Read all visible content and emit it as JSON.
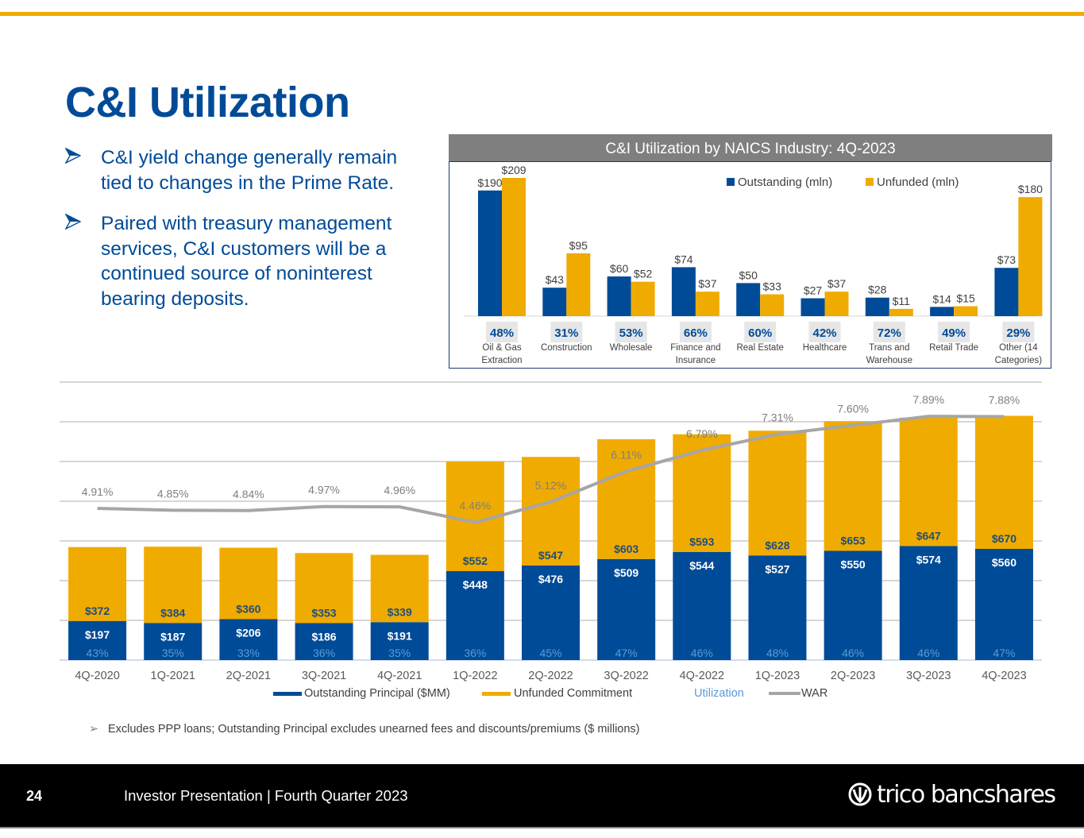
{
  "slide": {
    "title": "C&I Utilization",
    "bullets": [
      "C&I yield change generally remain tied to changes in the Prime Rate.",
      "Paired with treasury management services, C&I customers will be a continued source of noninterest bearing deposits."
    ],
    "footnote": "Excludes PPP loans; Outstanding Principal excludes unearned fees and discounts/premiums ($ millions)",
    "page_number": "24",
    "footer_text": "Investor Presentation | Fourth Quarter 2023",
    "logo_text": "trico bancshares",
    "colors": {
      "accent_gold": "#f0ab00",
      "brand_blue": "#004b98",
      "war_gray": "#a6a6a6",
      "utilization_blue": "#5b9bd5"
    }
  },
  "chart_data": [
    {
      "type": "bar",
      "title": "C&I Utilization by NAICS Industry: 4Q-2023",
      "categories": [
        "Oil & Gas Extraction",
        "Construction",
        "Wholesale",
        "Finance and Insurance",
        "Real Estate",
        "Healthcare",
        "Trans and Warehouse",
        "Retail Trade",
        "Other (14 Categories)"
      ],
      "category_lines": [
        [
          "Oil & Gas",
          "Extraction"
        ],
        [
          "Construction"
        ],
        [
          "Wholesale"
        ],
        [
          "Finance and",
          "Insurance"
        ],
        [
          "Real Estate"
        ],
        [
          "Healthcare"
        ],
        [
          "Trans and",
          "Warehouse"
        ],
        [
          "Retail Trade"
        ],
        [
          "Other (14",
          "Categories)"
        ]
      ],
      "series": [
        {
          "name": "Outstanding (mln)",
          "color": "#004b98",
          "values": [
            190,
            43,
            60,
            74,
            50,
            27,
            28,
            14,
            73
          ],
          "labels": [
            "$190",
            "$43",
            "$60",
            "$74",
            "$50",
            "$27",
            "$28",
            "$14",
            "$73"
          ]
        },
        {
          "name": "Unfunded (mln)",
          "color": "#f0ab00",
          "values": [
            209,
            95,
            52,
            37,
            33,
            37,
            11,
            15,
            180
          ],
          "labels": [
            "$209",
            "$95",
            "$52",
            "$37",
            "$33",
            "$37",
            "$11",
            "$15",
            "$180"
          ]
        }
      ],
      "utilization": [
        "48%",
        "31%",
        "53%",
        "66%",
        "60%",
        "42%",
        "72%",
        "49%",
        "29%"
      ],
      "ylim": [
        0,
        210
      ],
      "legend": "top-right",
      "grid": false
    },
    {
      "type": "bar",
      "stacked": true,
      "title": "",
      "categories": [
        "4Q-2020",
        "1Q-2021",
        "2Q-2021",
        "3Q-2021",
        "4Q-2021",
        "1Q-2022",
        "2Q-2022",
        "3Q-2022",
        "4Q-2022",
        "1Q-2023",
        "2Q-2023",
        "3Q-2023",
        "4Q-2023"
      ],
      "series": [
        {
          "name": "Outstanding Principal ($MM)",
          "color": "#004b98",
          "values": [
            197,
            187,
            206,
            186,
            191,
            448,
            476,
            509,
            544,
            527,
            550,
            574,
            560
          ],
          "labels": [
            "$197",
            "$187",
            "$206",
            "$186",
            "$191",
            "$448",
            "$476",
            "$509",
            "$544",
            "$527",
            "$550",
            "$574",
            "$560"
          ]
        },
        {
          "name": "Unfunded Commitment",
          "color": "#f0ab00",
          "values": [
            372,
            384,
            360,
            353,
            339,
            552,
            547,
            603,
            593,
            628,
            653,
            647,
            670
          ],
          "labels": [
            "$372",
            "$384",
            "$360",
            "$353",
            "$339",
            "$552",
            "$547",
            "$603",
            "$593",
            "$628",
            "$653",
            "$647",
            "$670"
          ]
        },
        {
          "name": "Utilization",
          "color": "#5b9bd5",
          "values": [
            43,
            35,
            33,
            36,
            35,
            36,
            45,
            47,
            46,
            48,
            46,
            46,
            47
          ],
          "labels": [
            "43%",
            "35%",
            "33%",
            "36%",
            "35%",
            "36%",
            "45%",
            "47%",
            "46%",
            "48%",
            "46%",
            "46%",
            "47%"
          ]
        },
        {
          "name": "WAR",
          "type": "line",
          "color": "#a6a6a6",
          "values": [
            4.91,
            4.85,
            4.84,
            4.97,
            4.96,
            4.46,
            5.12,
            6.11,
            6.79,
            7.31,
            7.6,
            7.89,
            7.88
          ],
          "labels": [
            "4.91%",
            "4.85%",
            "4.84%",
            "4.97%",
            "4.96%",
            "4.46%",
            "5.12%",
            "6.11%",
            "6.79%",
            "7.31%",
            "7.60%",
            "7.89%",
            "7.88%"
          ]
        }
      ],
      "ylim": [
        0,
        1400
      ],
      "y2lim": [
        0,
        9
      ],
      "grid": true,
      "legend": "bottom"
    }
  ]
}
